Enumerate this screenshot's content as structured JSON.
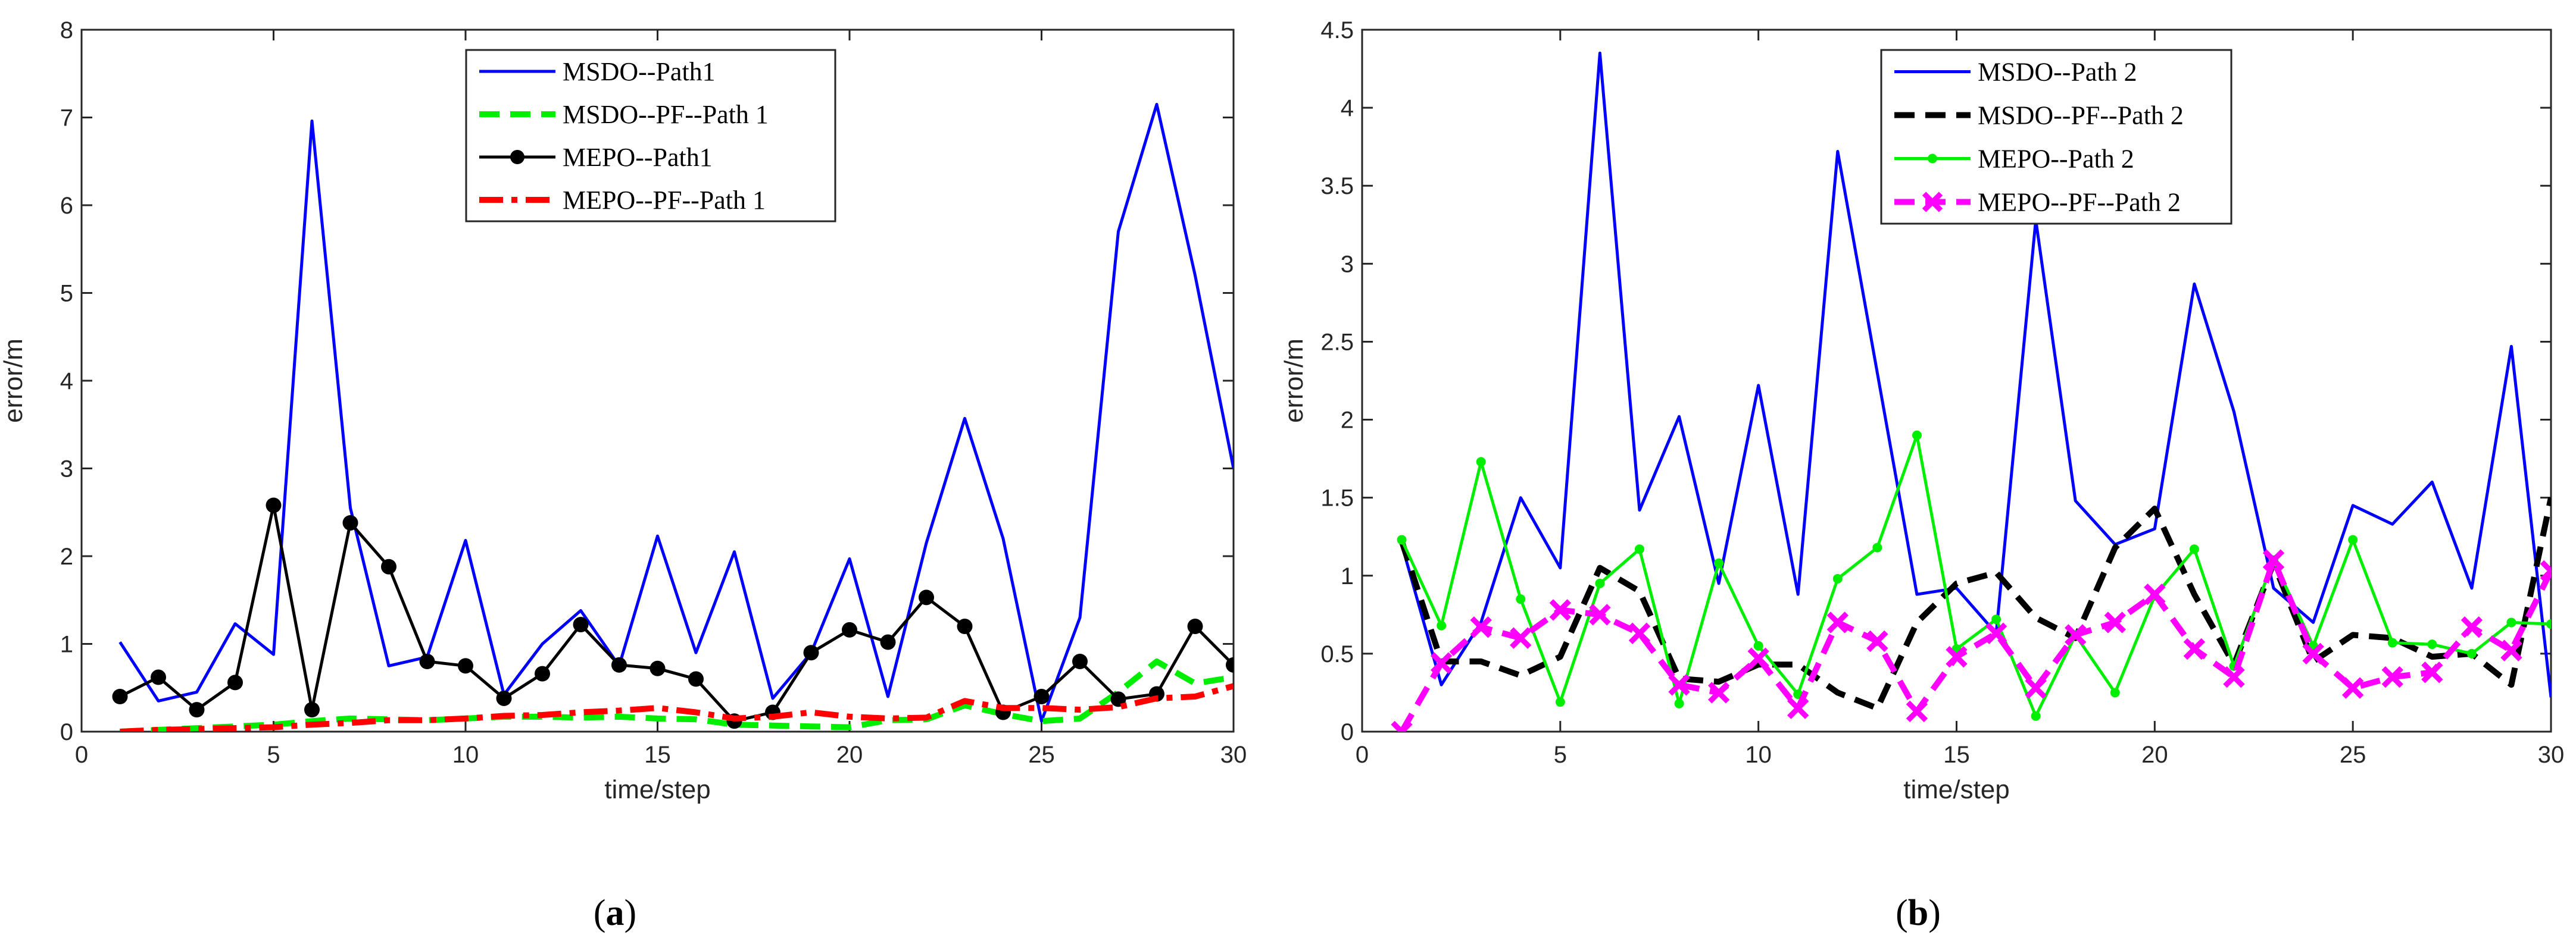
{
  "chart_data": [
    {
      "type": "line",
      "panel": "a",
      "caption": "(a)",
      "caption_parts": {
        "open": "(",
        "letter": "a",
        "close": ")"
      },
      "xlabel": "time/step",
      "ylabel": "error/m",
      "xlim": [
        0,
        30
      ],
      "ylim": [
        0,
        8
      ],
      "xticks": [
        0,
        5,
        10,
        15,
        20,
        25,
        30
      ],
      "yticks": [
        0,
        1,
        2,
        3,
        4,
        5,
        6,
        7,
        8
      ],
      "legend_position": "top-center",
      "x": [
        1,
        2,
        3,
        4,
        5,
        6,
        7,
        8,
        9,
        10,
        11,
        12,
        13,
        14,
        15,
        16,
        17,
        18,
        19,
        20,
        21,
        22,
        23,
        24,
        25,
        26,
        27,
        28,
        29,
        30
      ],
      "series": [
        {
          "name": "MSDO--Path1",
          "color": "#0000ff",
          "style": "solid",
          "marker": "none",
          "values": [
            1.02,
            0.35,
            0.45,
            1.23,
            0.88,
            6.96,
            2.55,
            0.75,
            0.85,
            2.18,
            0.42,
            1.0,
            1.38,
            0.75,
            2.23,
            0.9,
            2.05,
            0.38,
            0.9,
            1.97,
            0.4,
            2.15,
            3.57,
            2.2,
            0.12,
            1.3,
            5.7,
            7.15,
            5.2,
            3.0
          ]
        },
        {
          "name": "MSDO--PF--Path 1",
          "color": "#00ee00",
          "style": "dashed",
          "marker": "none",
          "values": [
            0.0,
            0.02,
            0.04,
            0.06,
            0.08,
            0.12,
            0.15,
            0.14,
            0.13,
            0.15,
            0.17,
            0.17,
            0.16,
            0.17,
            0.15,
            0.14,
            0.08,
            0.07,
            0.06,
            0.05,
            0.13,
            0.14,
            0.3,
            0.2,
            0.12,
            0.15,
            0.45,
            0.8,
            0.55,
            0.62
          ]
        },
        {
          "name": "MEPO--Path1",
          "color": "#000000",
          "style": "solid",
          "marker": "dot",
          "values": [
            0.4,
            0.62,
            0.25,
            0.56,
            2.58,
            0.25,
            2.38,
            1.88,
            0.8,
            0.75,
            0.38,
            0.66,
            1.22,
            0.76,
            0.72,
            0.6,
            0.12,
            0.22,
            0.9,
            1.16,
            1.02,
            1.53,
            1.2,
            0.22,
            0.4,
            0.8,
            0.37,
            0.43,
            1.2,
            0.76
          ]
        },
        {
          "name": "MEPO--PF--Path 1",
          "color": "#ff0000",
          "style": "dashdot",
          "marker": "none",
          "values": [
            0.0,
            0.02,
            0.03,
            0.04,
            0.05,
            0.08,
            0.1,
            0.13,
            0.13,
            0.15,
            0.18,
            0.19,
            0.22,
            0.24,
            0.27,
            0.22,
            0.15,
            0.17,
            0.22,
            0.17,
            0.15,
            0.16,
            0.35,
            0.27,
            0.27,
            0.25,
            0.28,
            0.38,
            0.4,
            0.52
          ]
        }
      ]
    },
    {
      "type": "line",
      "panel": "b",
      "caption": "(b)",
      "caption_parts": {
        "open": "(",
        "letter": "b",
        "close": ")"
      },
      "xlabel": "time/step",
      "ylabel": "error/m",
      "xlim": [
        0,
        30
      ],
      "ylim": [
        0,
        4.5
      ],
      "xticks": [
        0,
        5,
        10,
        15,
        20,
        25,
        30
      ],
      "yticks": [
        0,
        0.5,
        1,
        1.5,
        2,
        2.5,
        3,
        3.5,
        4,
        4.5
      ],
      "legend_position": "top-center",
      "x": [
        1,
        2,
        3,
        4,
        5,
        6,
        7,
        8,
        9,
        10,
        11,
        12,
        13,
        14,
        15,
        16,
        17,
        18,
        19,
        20,
        21,
        22,
        23,
        24,
        25,
        26,
        27,
        28,
        29,
        30
      ],
      "series": [
        {
          "name": "MSDO--Path 2",
          "color": "#0000ff",
          "style": "solid",
          "marker": "none",
          "values": [
            1.2,
            0.3,
            0.7,
            1.5,
            1.05,
            4.35,
            1.42,
            2.02,
            0.95,
            2.22,
            0.88,
            3.72,
            2.3,
            0.88,
            0.92,
            0.63,
            3.28,
            1.48,
            1.2,
            1.3,
            2.87,
            2.05,
            0.92,
            0.7,
            1.45,
            1.33,
            1.6,
            0.92,
            2.47,
            0.22
          ]
        },
        {
          "name": "MSDO--PF--Path 2",
          "color": "#000000",
          "style": "dashed",
          "marker": "none",
          "values": [
            1.22,
            0.45,
            0.45,
            0.36,
            0.48,
            1.05,
            0.9,
            0.34,
            0.32,
            0.43,
            0.43,
            0.25,
            0.15,
            0.7,
            0.95,
            1.02,
            0.73,
            0.6,
            1.18,
            1.43,
            0.88,
            0.43,
            1.08,
            0.45,
            0.62,
            0.6,
            0.48,
            0.5,
            0.3,
            1.5
          ]
        },
        {
          "name": "MEPO--Path 2",
          "color": "#00ee00",
          "style": "solid",
          "marker": "dot",
          "values": [
            1.23,
            0.68,
            1.73,
            0.85,
            0.19,
            0.95,
            1.17,
            0.18,
            1.08,
            0.55,
            0.24,
            0.98,
            1.18,
            1.9,
            0.53,
            0.72,
            0.1,
            0.62,
            0.25,
            0.87,
            1.17,
            0.42,
            1.1,
            0.55,
            1.23,
            0.57,
            0.56,
            0.5,
            0.7,
            0.69
          ]
        },
        {
          "name": "MEPO--PF--Path 2",
          "color": "#ff00ff",
          "style": "dashed",
          "marker": "x",
          "values": [
            0.0,
            0.44,
            0.67,
            0.6,
            0.78,
            0.75,
            0.63,
            0.3,
            0.25,
            0.47,
            0.15,
            0.7,
            0.58,
            0.13,
            0.48,
            0.63,
            0.28,
            0.62,
            0.7,
            0.88,
            0.53,
            0.35,
            1.1,
            0.5,
            0.28,
            0.35,
            0.38,
            0.67,
            0.52,
            1.03
          ]
        }
      ]
    }
  ]
}
